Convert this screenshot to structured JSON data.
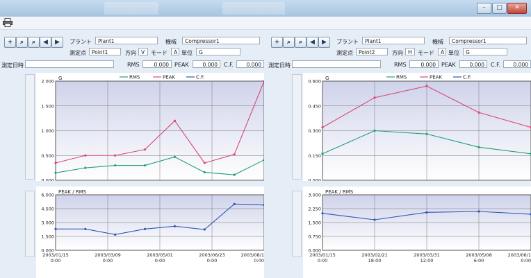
{
  "window": {
    "controls": {
      "minimize": "–",
      "maximize": "□",
      "close": "✕"
    }
  },
  "toolbar": {
    "print_icon": "printer-icon"
  },
  "panels": [
    {
      "nav": [
        "+",
        "⌕",
        "⌕",
        "◀",
        "▶"
      ],
      "plant_label": "プラント",
      "plant_value": "Plant1",
      "machine_label": "機械",
      "machine_value": "Compressor1",
      "point_label": "測定点",
      "point_value": "Point1",
      "dir_label": "方向",
      "dir_value": "V",
      "mode_label": "モード",
      "mode_value": "A",
      "unit_label": "単位",
      "unit_value": "G",
      "date_label": "測定日時",
      "date_value": "",
      "rms_label": "RMS",
      "rms_value": "0.000",
      "peak_label": "PEAK",
      "peak_value": "0.000",
      "cf_label": "C.F.",
      "cf_value": "0.000",
      "top_chart": {
        "ylabel": "G",
        "yticks": [
          "2.000",
          "1.500",
          "1.000",
          "0.500",
          "0.000"
        ],
        "ymax": 2.0,
        "legend": [
          "RMS",
          "PEAK",
          "C.F."
        ],
        "rms": [
          0.15,
          0.25,
          0.3,
          0.3,
          0.47,
          0.16,
          0.11,
          0.41
        ],
        "peak": [
          0.35,
          0.5,
          0.5,
          0.62,
          1.2,
          0.35,
          0.52,
          2.0
        ]
      },
      "bottom_chart": {
        "ylabel": "PEAK / RMS",
        "yticks": [
          "6.000",
          "4.500",
          "3.000",
          "1.500",
          "0.000"
        ],
        "ymax": 6.0,
        "cf": [
          2.3,
          2.3,
          1.7,
          2.3,
          2.6,
          2.25,
          5.0,
          4.9
        ]
      },
      "xticks": [
        {
          "d": "2003/01/15",
          "t": "0:00"
        },
        {
          "d": "2003/03/09",
          "t": "0:00"
        },
        {
          "d": "2003/05/01",
          "t": "0:00"
        },
        {
          "d": "2003/06/23",
          "t": "0:00"
        },
        {
          "d": "2003/08/1",
          "t": "0:00"
        }
      ]
    },
    {
      "nav": [
        "+",
        "⌕",
        "⌕",
        "◀",
        "▶"
      ],
      "plant_label": "プラント",
      "plant_value": "Plant1",
      "machine_label": "機械",
      "machine_value": "Compressor1",
      "point_label": "測定点",
      "point_value": "Point2",
      "dir_label": "方向",
      "dir_value": "H",
      "mode_label": "モード",
      "mode_value": "A",
      "unit_label": "単位",
      "unit_value": "G",
      "date_label": "測定日時",
      "date_value": "",
      "rms_label": "RMS",
      "rms_value": "0.000",
      "peak_label": "PEAK",
      "peak_value": "0.000",
      "cf_label": "C.F.",
      "cf_value": "0.000",
      "top_chart": {
        "ylabel": "G",
        "yticks": [
          "0.600",
          "0.450",
          "0.300",
          "0.150",
          "0.000"
        ],
        "ymax": 0.6,
        "legend": [
          "RMS",
          "PEAK",
          "C.F."
        ],
        "rms": [
          0.16,
          0.3,
          0.28,
          0.2,
          0.16
        ],
        "peak": [
          0.32,
          0.5,
          0.57,
          0.41,
          0.32
        ]
      },
      "bottom_chart": {
        "ylabel": "PEAK / RMS",
        "yticks": [
          "3.000",
          "2.250",
          "1.500",
          "0.750",
          "0.000"
        ],
        "ymax": 3.0,
        "cf": [
          2.0,
          1.65,
          2.05,
          2.1,
          1.95
        ]
      },
      "xticks": [
        {
          "d": "2003/01/15",
          "t": "0:00"
        },
        {
          "d": "2003/02/21",
          "t": "18:00"
        },
        {
          "d": "2003/03/31",
          "t": "12:00"
        },
        {
          "d": "2003/05/08",
          "t": "6:00"
        },
        {
          "d": "2003/06/1",
          "t": "0:00"
        }
      ]
    }
  ],
  "colors": {
    "rms": "#1f9e7a",
    "peak": "#d9457a",
    "cf": "#2f55b8",
    "plot_top": "#cfd3ea",
    "plot_bottom": "#ffffff"
  }
}
